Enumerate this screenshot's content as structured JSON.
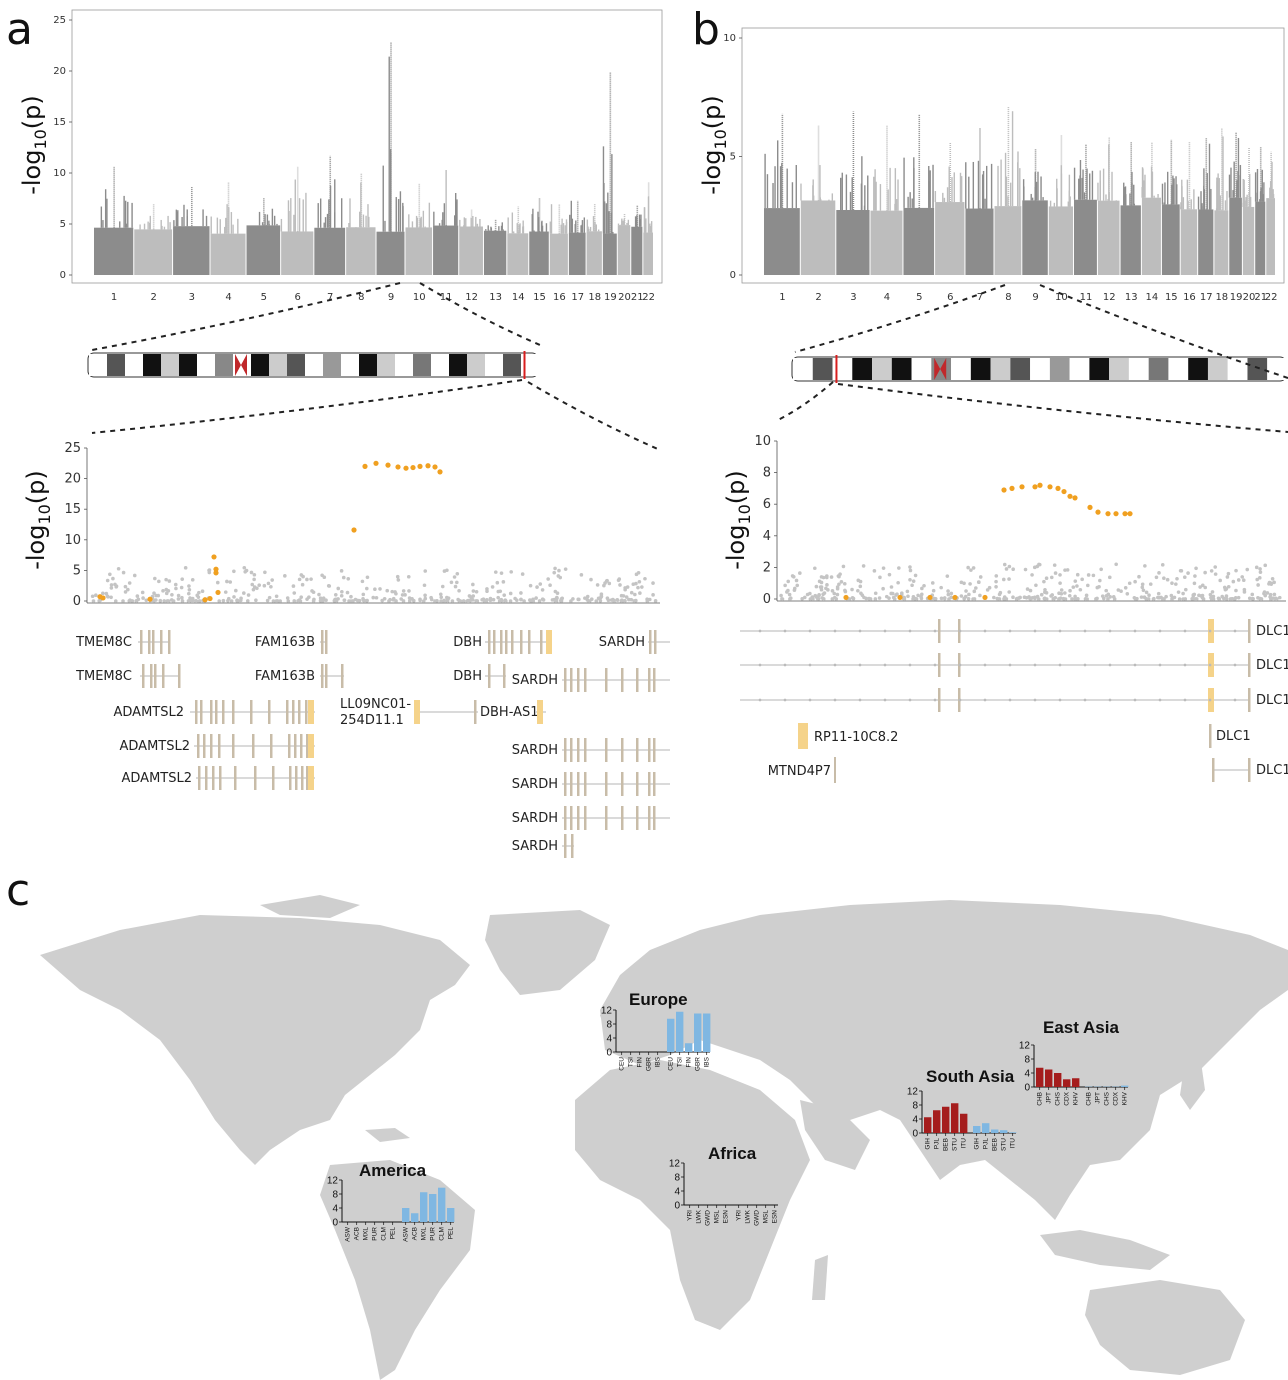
{
  "panels": {
    "a": {
      "label": "a"
    },
    "b": {
      "label": "b"
    },
    "c": {
      "label": "c"
    }
  },
  "chart_data": [
    {
      "type": "scatter",
      "subtype": "manhattan",
      "panel": "a",
      "ylabel": "-log10(p)",
      "ylim": [
        0,
        25
      ],
      "yticks": [
        0,
        5,
        10,
        15,
        20,
        25
      ],
      "chromosomes": [
        "1",
        "2",
        "3",
        "4",
        "5",
        "6",
        "7",
        "8",
        "9",
        "10",
        "11",
        "12",
        "13",
        "14",
        "15",
        "16",
        "17",
        "18",
        "19",
        "20",
        "21",
        "22"
      ],
      "peaks": [
        {
          "chr": "1",
          "max": 10.6
        },
        {
          "chr": "2",
          "max": 7.0
        },
        {
          "chr": "3",
          "max": 8.7
        },
        {
          "chr": "4",
          "max": 9.1
        },
        {
          "chr": "5",
          "max": 7.6
        },
        {
          "chr": "6",
          "max": 10.6
        },
        {
          "chr": "7",
          "max": 11.7
        },
        {
          "chr": "8",
          "max": 10.0
        },
        {
          "chr": "9",
          "max": 22.8
        },
        {
          "chr": "10",
          "max": 9.0
        },
        {
          "chr": "11",
          "max": 10.3
        },
        {
          "chr": "12",
          "max": 6.4
        },
        {
          "chr": "13",
          "max": 5.4
        },
        {
          "chr": "14",
          "max": 6.7
        },
        {
          "chr": "15",
          "max": 7.6
        },
        {
          "chr": "16",
          "max": 7.0
        },
        {
          "chr": "17",
          "max": 7.3
        },
        {
          "chr": "18",
          "max": 7.0
        },
        {
          "chr": "19",
          "max": 19.9
        },
        {
          "chr": "20",
          "max": 6.0
        },
        {
          "chr": "21",
          "max": 6.8
        },
        {
          "chr": "22",
          "max": 9.1
        }
      ]
    },
    {
      "type": "scatter",
      "subtype": "manhattan",
      "panel": "b",
      "ylabel": "-log10(p)",
      "ylim": [
        0,
        10
      ],
      "yticks": [
        0,
        5,
        10
      ],
      "chromosomes": [
        "1",
        "2",
        "3",
        "4",
        "5",
        "6",
        "7",
        "8",
        "9",
        "10",
        "11",
        "12",
        "13",
        "14",
        "15",
        "16",
        "17",
        "18",
        "19",
        "20",
        "21",
        "22"
      ],
      "peaks": [
        {
          "chr": "1",
          "max": 6.8
        },
        {
          "chr": "2",
          "max": 6.3
        },
        {
          "chr": "3",
          "max": 6.9
        },
        {
          "chr": "4",
          "max": 6.3
        },
        {
          "chr": "5",
          "max": 6.8
        },
        {
          "chr": "6",
          "max": 5.6
        },
        {
          "chr": "7",
          "max": 6.2
        },
        {
          "chr": "8",
          "max": 7.1
        },
        {
          "chr": "9",
          "max": 5.3
        },
        {
          "chr": "10",
          "max": 5.9
        },
        {
          "chr": "11",
          "max": 5.5
        },
        {
          "chr": "12",
          "max": 5.8
        },
        {
          "chr": "13",
          "max": 5.6
        },
        {
          "chr": "14",
          "max": 5.6
        },
        {
          "chr": "15",
          "max": 5.7
        },
        {
          "chr": "16",
          "max": 5.6
        },
        {
          "chr": "17",
          "max": 5.8
        },
        {
          "chr": "18",
          "max": 6.2
        },
        {
          "chr": "19",
          "max": 6.0
        },
        {
          "chr": "20",
          "max": 5.4
        },
        {
          "chr": "21",
          "max": 5.4
        },
        {
          "chr": "22",
          "max": 5.2
        }
      ]
    },
    {
      "type": "scatter",
      "subtype": "regional",
      "panel": "a",
      "ylabel": "-log10(p)",
      "ylim": [
        0,
        25
      ],
      "yticks": [
        0,
        5,
        10,
        15,
        20,
        25
      ],
      "highlight_color": "#f0a020",
      "highlighted": [
        0.7,
        0.5,
        0.3,
        0.2,
        0.4,
        7.2,
        5.2,
        4.6,
        1.4,
        11.6,
        22.0,
        22.5,
        22.2,
        21.9,
        21.7,
        21.8,
        22.0,
        22.1,
        21.9,
        21.1
      ]
    },
    {
      "type": "scatter",
      "subtype": "regional",
      "panel": "b",
      "ylabel": "-log10(p)",
      "ylim": [
        0,
        10
      ],
      "yticks": [
        0,
        2,
        4,
        6,
        8,
        10
      ],
      "highlight_color": "#f0a020",
      "highlighted": [
        6.9,
        7.0,
        7.1,
        7.1,
        7.2,
        7.1,
        7.0,
        6.8,
        6.5,
        6.4,
        5.8,
        5.5,
        5.4,
        5.4,
        5.4,
        5.4,
        0.1,
        0.1,
        0.1,
        0.1,
        0.1
      ]
    },
    {
      "type": "bar",
      "region": "Europe",
      "yticks": [
        0,
        4,
        8,
        12
      ],
      "categories": [
        "CEU",
        "TSI",
        "FIN",
        "GBR",
        "IBS",
        "CEU",
        "TSI",
        "FIN",
        "GBR",
        "IBS"
      ],
      "values": [
        0,
        0,
        0,
        0,
        0,
        9.5,
        11.5,
        2.5,
        11,
        11
      ],
      "colors": [
        "#e8a8a8",
        "#e8a8a8",
        "#e8a8a8",
        "#e8a8a8",
        "#e8a8a8",
        "#7fb7e2",
        "#7fb7e2",
        "#7fb7e2",
        "#7fb7e2",
        "#7fb7e2"
      ]
    },
    {
      "type": "bar",
      "region": "East Asia",
      "yticks": [
        0,
        4,
        8,
        12
      ],
      "categories": [
        "CHB",
        "JPT",
        "CHS",
        "CDX",
        "KHV",
        "CHB",
        "JPT",
        "CHS",
        "CDX",
        "KHV"
      ],
      "values": [
        5.5,
        5,
        4,
        2.2,
        2.5,
        0.1,
        0.1,
        0.1,
        0.1,
        0.4
      ],
      "colors": [
        "#a51d1d",
        "#a51d1d",
        "#a51d1d",
        "#a51d1d",
        "#a51d1d",
        "#7fb7e2",
        "#7fb7e2",
        "#7fb7e2",
        "#7fb7e2",
        "#7fb7e2"
      ]
    },
    {
      "type": "bar",
      "region": "South Asia",
      "yticks": [
        0,
        4,
        8,
        12
      ],
      "categories": [
        "GIH",
        "PJL",
        "BEB",
        "STU",
        "ITU",
        "GIH",
        "PJL",
        "BEB",
        "STU",
        "ITU"
      ],
      "values": [
        4.5,
        6.5,
        7.5,
        8.5,
        5.5,
        2,
        2.8,
        1,
        0.8,
        0.2
      ],
      "colors": [
        "#a51d1d",
        "#a51d1d",
        "#a51d1d",
        "#a51d1d",
        "#a51d1d",
        "#7fb7e2",
        "#7fb7e2",
        "#7fb7e2",
        "#7fb7e2",
        "#7fb7e2"
      ]
    },
    {
      "type": "bar",
      "region": "Africa",
      "yticks": [
        0,
        4,
        8,
        12
      ],
      "categories": [
        "YRI",
        "LWK",
        "GWD",
        "MSL",
        "ESN",
        "YRI",
        "LWK",
        "GWD",
        "MSL",
        "ESN"
      ],
      "values": [
        0,
        0,
        0,
        0,
        0,
        0,
        0,
        0,
        0,
        0
      ],
      "colors": [
        "#e8a8a8",
        "#e8a8a8",
        "#e8a8a8",
        "#e8a8a8",
        "#e8a8a8",
        "#7fb7e2",
        "#7fb7e2",
        "#7fb7e2",
        "#7fb7e2",
        "#7fb7e2"
      ]
    },
    {
      "type": "bar",
      "region": "America",
      "yticks": [
        0,
        4,
        8,
        12
      ],
      "categories": [
        "ASW",
        "ACB",
        "MXL",
        "PUR",
        "CLM",
        "PEL",
        "ASW",
        "ACB",
        "MXL",
        "PUR",
        "CLM",
        "PEL"
      ],
      "values": [
        0,
        0,
        0,
        0,
        0,
        0,
        4,
        2.5,
        8.5,
        8,
        9.8,
        4
      ],
      "colors": [
        "#e8a8a8",
        "#e8a8a8",
        "#e8a8a8",
        "#e8a8a8",
        "#e8a8a8",
        "#e8a8a8",
        "#7fb7e2",
        "#7fb7e2",
        "#7fb7e2",
        "#7fb7e2",
        "#7fb7e2",
        "#7fb7e2"
      ]
    }
  ],
  "genes_a": {
    "labels": [
      "TMEM8C",
      "TMEM8C",
      "ADAMTSL2",
      "ADAMTSL2",
      "ADAMTSL2",
      "FAM163B",
      "FAM163B",
      "LL09NC01-",
      "254D11.1",
      "DBH",
      "DBH",
      "DBH-AS1",
      "SARDH",
      "SARDH",
      "SARDH",
      "SARDH",
      "SARDH",
      "SARDH"
    ]
  },
  "genes_b": {
    "labels": [
      "DLC1",
      "DLC1",
      "DLC1",
      "DLC1",
      "DLC1",
      "RP11-10C8.2",
      "MTND4P7"
    ]
  },
  "colors": {
    "manhattan_dark": "#8c8c8c",
    "manhattan_light": "#bdbdbd",
    "highlight": "#f0a020",
    "centromere": "#c0282b",
    "locus_marker": "#d81e1e",
    "exon_color": "#c8bca8",
    "map_land": "#cfcfcf",
    "case_bar_red": "#a51d1d",
    "case_bar_blue": "#7fb7e2"
  }
}
